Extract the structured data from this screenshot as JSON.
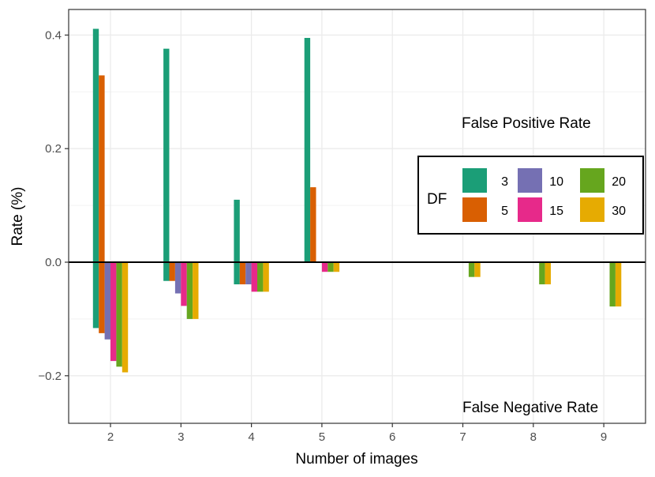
{
  "chart_data": {
    "type": "bar",
    "title": "",
    "xlabel": "Number of images",
    "ylabel": "Rate (%)",
    "x": [
      2,
      3,
      4,
      5,
      6,
      7,
      8,
      9
    ],
    "x_tick_labels": [
      "2",
      "3",
      "4",
      "5",
      "6",
      "7",
      "8",
      "9"
    ],
    "ylim": [
      -0.285,
      0.445
    ],
    "y_ticks": [
      0.4,
      0.2,
      0.0,
      -0.2
    ],
    "y_tick_labels": [
      "0.4",
      "0.2",
      "0.0",
      "−0.2"
    ],
    "grid": true,
    "legend": {
      "title": "DF",
      "placement": "right"
    },
    "annotations": [
      "False Positive Rate",
      "False Negative Rate"
    ],
    "false_positive": [
      {
        "name": "3",
        "color": "#1b9e77",
        "values": [
          0.411,
          0.376,
          0.11,
          0.395,
          null,
          null,
          null,
          null
        ]
      },
      {
        "name": "5",
        "color": "#d95f02",
        "values": [
          0.329,
          null,
          null,
          0.132,
          null,
          null,
          null,
          null
        ]
      },
      {
        "name": "10",
        "color": "#7570b3",
        "values": [
          null,
          null,
          null,
          null,
          null,
          null,
          null,
          null
        ]
      },
      {
        "name": "15",
        "color": "#e7298a",
        "values": [
          null,
          null,
          null,
          null,
          null,
          null,
          null,
          null
        ]
      },
      {
        "name": "20",
        "color": "#66a61e",
        "values": [
          null,
          null,
          null,
          null,
          null,
          null,
          null,
          null
        ]
      },
      {
        "name": "30",
        "color": "#e6ab02",
        "values": [
          null,
          null,
          null,
          null,
          null,
          null,
          null,
          null
        ]
      }
    ],
    "false_negative": [
      {
        "name": "3",
        "color": "#1b9e77",
        "values": [
          -0.116,
          -0.033,
          -0.039,
          null,
          null,
          null,
          null,
          null
        ]
      },
      {
        "name": "5",
        "color": "#d95f02",
        "values": [
          -0.125,
          -0.033,
          -0.039,
          null,
          null,
          null,
          null,
          null
        ]
      },
      {
        "name": "10",
        "color": "#7570b3",
        "values": [
          -0.136,
          -0.055,
          -0.039,
          null,
          null,
          null,
          null,
          null
        ]
      },
      {
        "name": "15",
        "color": "#e7298a",
        "values": [
          -0.174,
          -0.077,
          -0.052,
          -0.017,
          null,
          null,
          null,
          null
        ]
      },
      {
        "name": "20",
        "color": "#66a61e",
        "values": [
          -0.184,
          -0.1,
          -0.052,
          -0.017,
          null,
          -0.026,
          -0.039,
          -0.078
        ]
      },
      {
        "name": "30",
        "color": "#e6ab02",
        "values": [
          -0.194,
          -0.1,
          -0.052,
          -0.017,
          null,
          -0.026,
          -0.039,
          -0.078
        ]
      }
    ]
  }
}
